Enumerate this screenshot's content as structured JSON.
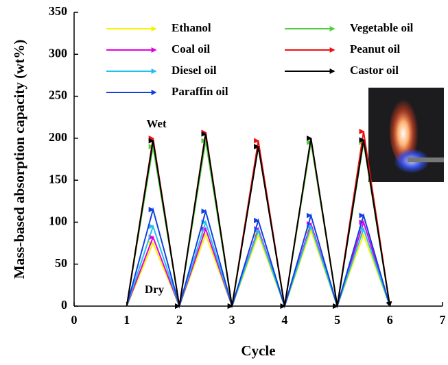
{
  "chart_data": {
    "type": "line",
    "x_label": "Cycle",
    "y_label": "Mass-based absorption capacity (wt%)",
    "xlim": [
      0,
      7
    ],
    "xticks": [
      0,
      1,
      2,
      3,
      4,
      5,
      6,
      7
    ],
    "ylim": [
      0,
      350
    ],
    "yticks": [
      0,
      50,
      100,
      150,
      200,
      250,
      300,
      350
    ],
    "annotations": [
      "Wet",
      "Dry"
    ],
    "x": [
      1,
      1.5,
      2,
      2.5,
      3,
      3.5,
      4,
      4.5,
      5,
      5.5,
      6
    ],
    "series": [
      {
        "name": "Ethanol",
        "color": "#f5f500",
        "values": [
          0,
          75,
          0,
          85,
          0,
          85,
          0,
          90,
          0,
          85,
          0
        ]
      },
      {
        "name": "Coal oil",
        "color": "#e000e0",
        "values": [
          0,
          82,
          0,
          92,
          0,
          92,
          0,
          98,
          0,
          100,
          0
        ]
      },
      {
        "name": "Diesel oil",
        "color": "#20c0f0",
        "values": [
          0,
          95,
          0,
          100,
          0,
          90,
          0,
          95,
          0,
          92,
          0
        ]
      },
      {
        "name": "Paraffin oil",
        "color": "#1040e0",
        "values": [
          0,
          115,
          0,
          113,
          0,
          102,
          0,
          108,
          0,
          108,
          0
        ]
      },
      {
        "name": "Vegetable oil",
        "color": "#50d040",
        "values": [
          0,
          190,
          0,
          197,
          0,
          190,
          0,
          195,
          0,
          195,
          0
        ]
      },
      {
        "name": "Peanut oil",
        "color": "#f01010",
        "values": [
          0,
          200,
          0,
          207,
          0,
          197,
          0,
          200,
          0,
          208,
          0
        ]
      },
      {
        "name": "Castor oil",
        "color": "#000000",
        "values": [
          0,
          197,
          0,
          205,
          0,
          190,
          0,
          200,
          0,
          198,
          0
        ]
      }
    ]
  }
}
